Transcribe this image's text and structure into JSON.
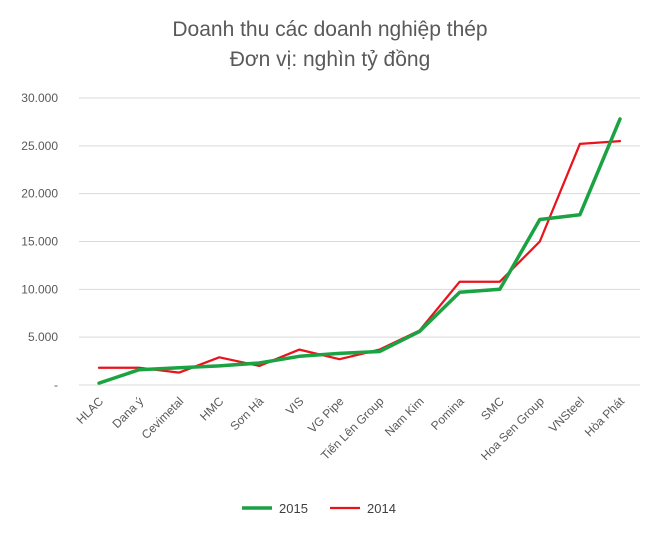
{
  "chart_data": {
    "type": "line",
    "title": "Doanh thu các doanh nghiệp thép",
    "subtitle": "Đơn vị: nghìn tỷ đồng",
    "categories": [
      "HLAC",
      "Dana ý",
      "Cevimetal",
      "HMC",
      "Sơn Hà",
      "VIS",
      "VG Pipe",
      "Tiến Lên Group",
      "Nam Kim",
      "Pomina",
      "SMC",
      "Hoa Sen Group",
      "VNSteel",
      "Hòa Phát"
    ],
    "series": [
      {
        "name": "2015",
        "color": "#1aa243",
        "values": [
          200,
          1600,
          1800,
          2000,
          2300,
          3000,
          3300,
          3500,
          5600,
          9700,
          10000,
          17300,
          17800,
          27800
        ]
      },
      {
        "name": "2014",
        "color": "#e8141c",
        "values": [
          1800,
          1800,
          1300,
          2900,
          2000,
          3700,
          2700,
          3700,
          5700,
          10800,
          10800,
          15000,
          25200,
          25500
        ]
      }
    ],
    "ylim": [
      0,
      30000
    ],
    "yticks": [
      "-",
      "5.000",
      "10.000",
      "15.000",
      "20.000",
      "25.000",
      "30.000"
    ],
    "grid": true,
    "legend_position": "bottom"
  }
}
